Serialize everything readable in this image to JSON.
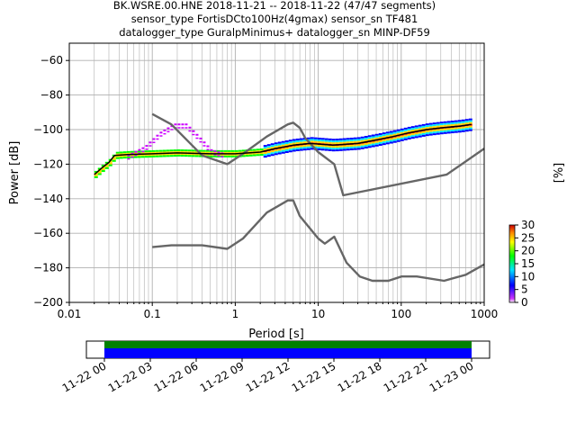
{
  "header": {
    "line1": "BK.WSRE.00.HNE   2018-11-21 -- 2018-11-22  (47/47 segments)",
    "line2": "sensor_type FortisDCto100Hz(4gmax) sensor_sn TF481",
    "line3": "datalogger_type GuralpMinimus+ datalogger_sn MINP-DF59"
  },
  "chart_data": [
    {
      "type": "heatmap",
      "xlabel": "Period [s]",
      "ylabel": "Power [dB]",
      "x_scale": "log",
      "xlim": [
        0.01,
        1000
      ],
      "ylim": [
        -200,
        -50
      ],
      "x_ticks": [
        {
          "value": 0.01,
          "label": "0.01"
        },
        {
          "value": 0.1,
          "label": "0.1"
        },
        {
          "value": 1,
          "label": "1"
        },
        {
          "value": 10,
          "label": "10"
        },
        {
          "value": 100,
          "label": "100"
        },
        {
          "value": 1000,
          "label": "1000"
        }
      ],
      "y_ticks": [
        -200,
        -180,
        -160,
        -140,
        -120,
        -100,
        -80,
        -60
      ],
      "grid": true,
      "colorbar": {
        "label": "[%]",
        "range": [
          0,
          30
        ],
        "ticks": [
          0,
          5,
          10,
          15,
          20,
          25,
          30
        ],
        "colormap": "pqlx"
      },
      "series": [
        {
          "role": "noise-model-high",
          "color": "#666666",
          "points": [
            [
              0.1,
              -91
            ],
            [
              0.17,
              -97
            ],
            [
              0.4,
              -115
            ],
            [
              0.8,
              -120
            ],
            [
              1.24,
              -114
            ],
            [
              2.4,
              -104
            ],
            [
              4.3,
              -97
            ],
            [
              5,
              -96
            ],
            [
              6,
              -99
            ],
            [
              7,
              -105
            ],
            [
              10,
              -113
            ],
            [
              15.6,
              -120
            ],
            [
              20,
              -138
            ],
            [
              354.8,
              -126
            ],
            [
              1000,
              -111
            ]
          ]
        },
        {
          "role": "noise-model-low",
          "color": "#666666",
          "points": [
            [
              0.1,
              -168
            ],
            [
              0.17,
              -167
            ],
            [
              0.4,
              -167
            ],
            [
              0.8,
              -169
            ],
            [
              1.24,
              -163
            ],
            [
              2.4,
              -148
            ],
            [
              4.3,
              -141
            ],
            [
              5,
              -141
            ],
            [
              6,
              -150
            ],
            [
              10,
              -163
            ],
            [
              12,
              -166
            ],
            [
              15.6,
              -162
            ],
            [
              21.9,
              -177
            ],
            [
              31.6,
              -185
            ],
            [
              45,
              -187.5
            ],
            [
              70,
              -187.5
            ],
            [
              101,
              -185
            ],
            [
              154,
              -185
            ],
            [
              328,
              -187.5
            ],
            [
              600,
              -184
            ],
            [
              1000,
              -178
            ]
          ]
        },
        {
          "role": "mode",
          "color": "#000000",
          "points": [
            [
              0.02,
              -126
            ],
            [
              0.025,
              -122
            ],
            [
              0.03,
              -119
            ],
            [
              0.035,
              -115
            ],
            [
              0.05,
              -114.5
            ],
            [
              0.1,
              -114
            ],
            [
              0.2,
              -113.5
            ],
            [
              0.5,
              -114
            ],
            [
              1,
              -114
            ],
            [
              2,
              -113
            ],
            [
              3,
              -111
            ],
            [
              5,
              -109
            ],
            [
              8,
              -108
            ],
            [
              15,
              -109
            ],
            [
              30,
              -108
            ],
            [
              50,
              -106
            ],
            [
              80,
              -104
            ],
            [
              120,
              -102
            ],
            [
              200,
              -100
            ],
            [
              300,
              -99
            ],
            [
              500,
              -98
            ],
            [
              700,
              -97
            ]
          ]
        },
        {
          "role": "pdf-upper-spread",
          "color": "#cc00ff",
          "points": [
            [
              0.05,
              -115
            ],
            [
              0.08,
              -110
            ],
            [
              0.12,
              -102
            ],
            [
              0.18,
              -97
            ],
            [
              0.25,
              -97
            ],
            [
              0.35,
              -104
            ],
            [
              0.5,
              -112
            ],
            [
              0.7,
              -114
            ]
          ]
        }
      ]
    },
    {
      "type": "bar",
      "subtype": "timeline-coverage",
      "x_ticks": [
        "11-22 00",
        "11-22 03",
        "11-22 06",
        "11-22 09",
        "11-22 12",
        "11-22 15",
        "11-22 18",
        "11-22 21",
        "11-23 00"
      ],
      "x_hours": [
        0,
        24
      ],
      "coverage": [
        {
          "band": "green",
          "color": "#008000",
          "start_hour": 0,
          "end_hour": 24
        },
        {
          "band": "blue",
          "color": "#0000ff",
          "start_hour": 0,
          "end_hour": 24
        }
      ]
    }
  ]
}
